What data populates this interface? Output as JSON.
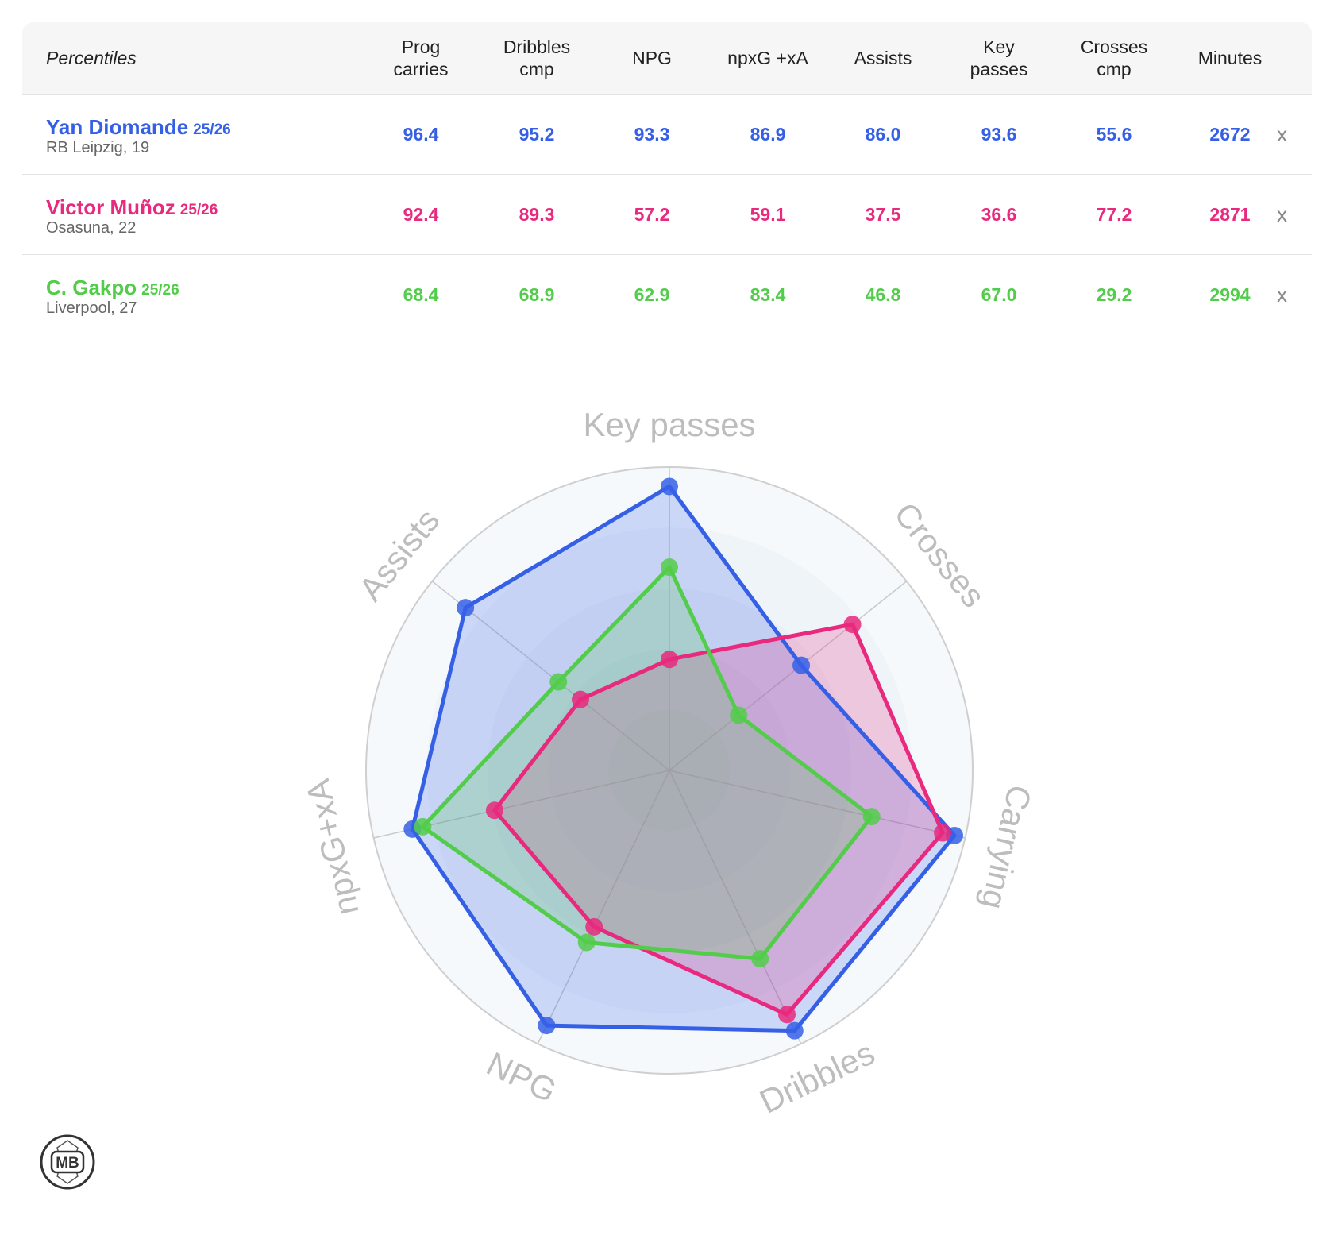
{
  "table": {
    "first_header": "Percentiles",
    "columns": [
      {
        "line1": "Prog",
        "line2": "carries"
      },
      {
        "line1": "Dribbles",
        "line2": "cmp"
      },
      {
        "line1": "NPG",
        "line2": ""
      },
      {
        "line1": "npxG +xA",
        "line2": ""
      },
      {
        "line1": "Assists",
        "line2": ""
      },
      {
        "line1": "Key",
        "line2": "passes"
      },
      {
        "line1": "Crosses",
        "line2": "cmp"
      },
      {
        "line1": "Minutes",
        "line2": ""
      }
    ],
    "remove_label": "x"
  },
  "players": [
    {
      "name": "Yan Diomande",
      "season": "25/26",
      "club": "RB Leipzig, 19",
      "color": "#3560e6",
      "values": [
        "96.4",
        "95.2",
        "93.3",
        "86.9",
        "86.0",
        "93.6",
        "55.6",
        "2672"
      ]
    },
    {
      "name": "Victor Muñoz",
      "season": "25/26",
      "club": "Osasuna, 22",
      "color": "#e8297d",
      "values": [
        "92.4",
        "89.3",
        "57.2",
        "59.1",
        "37.5",
        "36.6",
        "77.2",
        "2871"
      ]
    },
    {
      "name": "C. Gakpo",
      "season": "25/26",
      "club": "Liverpool, 27",
      "color": "#52cc4a",
      "values": [
        "68.4",
        "68.9",
        "62.9",
        "83.4",
        "46.8",
        "67.0",
        "29.2",
        "2994"
      ]
    }
  ],
  "chart_data": {
    "type": "radar",
    "axes": [
      "Key passes",
      "Crosses",
      "Carrying",
      "Dribbles",
      "NPG",
      "npxG+xA",
      "Assists"
    ],
    "range": [
      0,
      100
    ],
    "series": [
      {
        "name": "Yan Diomande",
        "color": "#3560e6",
        "values": [
          93.6,
          55.6,
          96.4,
          95.2,
          93.3,
          86.9,
          86.0
        ]
      },
      {
        "name": "Victor Muñoz",
        "color": "#e8297d",
        "values": [
          36.6,
          77.2,
          92.4,
          89.3,
          57.2,
          59.1,
          37.5
        ]
      },
      {
        "name": "C. Gakpo",
        "color": "#52cc4a",
        "values": [
          67.0,
          29.2,
          68.4,
          68.9,
          62.9,
          83.4,
          46.8
        ]
      }
    ]
  },
  "logo": {
    "text": "MB"
  }
}
